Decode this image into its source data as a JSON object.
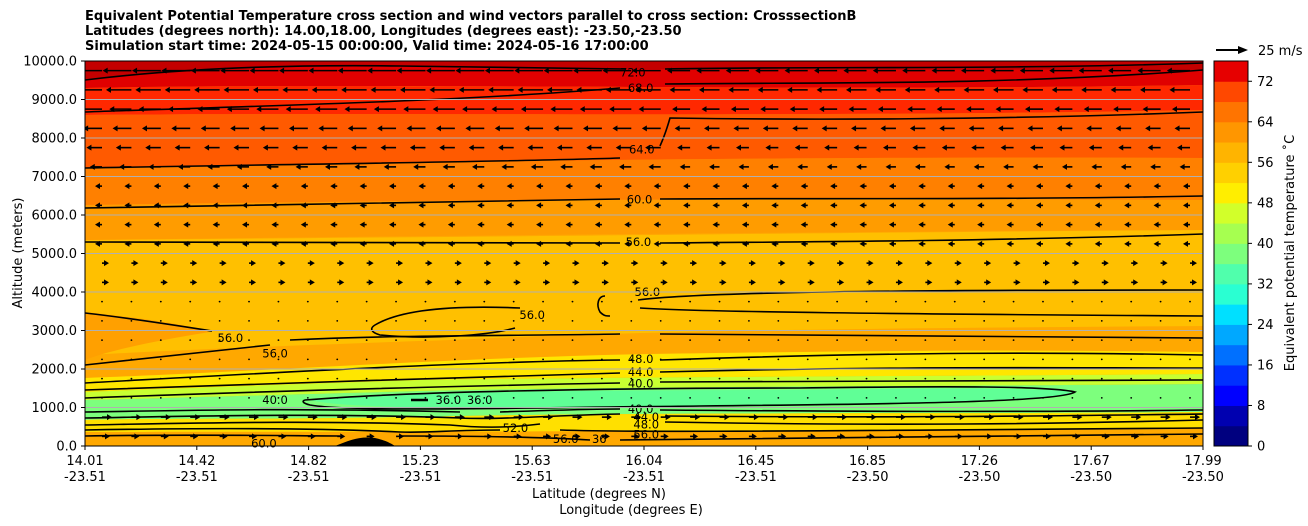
{
  "chart_data": {
    "type": "heatmap",
    "title_lines": [
      "Equivalent Potential Temperature cross section and wind vectors parallel to cross section: CrosssectionB",
      "Latitudes (degrees north): 14.00,18.00, Longitudes (degrees east): -23.50,-23.50",
      "Simulation start time: 2024-05-15 00:00:00, Valid time: 2024-05-16 17:00:00"
    ],
    "ylabel": "Altitude (meters)",
    "xlabel_lines": [
      "Latitude (degrees N)",
      "Longitude (degrees E)"
    ],
    "ylim": [
      0,
      10000
    ],
    "y_ticks": [
      0,
      1000,
      2000,
      3000,
      4000,
      5000,
      6000,
      7000,
      8000,
      9000,
      10000
    ],
    "y_tick_labels": [
      "0.0",
      "1000.0",
      "2000.0",
      "3000.0",
      "4000.0",
      "5000.0",
      "6000.0",
      "7000.0",
      "8000.0",
      "9000.0",
      "10000.0"
    ],
    "x_ticks": [
      {
        "lat": "14.01",
        "lon": "-23.51",
        "frac": 0.0
      },
      {
        "lat": "14.42",
        "lon": "-23.51",
        "frac": 0.1
      },
      {
        "lat": "14.82",
        "lon": "-23.51",
        "frac": 0.2
      },
      {
        "lat": "15.23",
        "lon": "-23.51",
        "frac": 0.3
      },
      {
        "lat": "15.63",
        "lon": "-23.51",
        "frac": 0.4
      },
      {
        "lat": "16.04",
        "lon": "-23.51",
        "frac": 0.5
      },
      {
        "lat": "16.45",
        "lon": "-23.51",
        "frac": 0.6
      },
      {
        "lat": "16.85",
        "lon": "-23.50",
        "frac": 0.7
      },
      {
        "lat": "17.26",
        "lon": "-23.50",
        "frac": 0.8
      },
      {
        "lat": "17.67",
        "lon": "-23.50",
        "frac": 0.9
      },
      {
        "lat": "17.99",
        "lon": "-23.50",
        "frac": 1.0
      }
    ],
    "colorbar": {
      "label": "Equivalent potential temperature ˚C",
      "min": 0,
      "max": 76,
      "ticks": [
        0,
        8,
        16,
        24,
        32,
        40,
        48,
        56,
        64,
        72
      ]
    },
    "quiver_key": "25 m/s",
    "grid": "horizontal",
    "contour_labels": [
      {
        "text": "72.0",
        "x": 0.49,
        "y": 9700
      },
      {
        "text": "68.0",
        "x": 0.497,
        "y": 9300
      },
      {
        "text": "64.0",
        "x": 0.498,
        "y": 7700
      },
      {
        "text": "60.0",
        "x": 0.496,
        "y": 6400
      },
      {
        "text": "56.0",
        "x": 0.495,
        "y": 5300
      },
      {
        "text": "56.0",
        "x": 0.503,
        "y": 4000
      },
      {
        "text": "56.0",
        "x": 0.4,
        "y": 3400
      },
      {
        "text": "56.0",
        "x": 0.13,
        "y": 2800
      },
      {
        "text": "56.0",
        "x": 0.17,
        "y": 2400
      },
      {
        "text": "48.0",
        "x": 0.497,
        "y": 2260
      },
      {
        "text": "44.0",
        "x": 0.497,
        "y": 1920
      },
      {
        "text": "40.0",
        "x": 0.497,
        "y": 1620
      },
      {
        "text": "40.0",
        "x": 0.17,
        "y": 1200
      },
      {
        "text": "36.0",
        "x": 0.325,
        "y": 1200
      },
      {
        "text": "36.0",
        "x": 0.353,
        "y": 1200
      },
      {
        "text": "40.0",
        "x": 0.497,
        "y": 960
      },
      {
        "text": "44.0",
        "x": 0.502,
        "y": 750
      },
      {
        "text": "48.0",
        "x": 0.502,
        "y": 560
      },
      {
        "text": "52.0",
        "x": 0.385,
        "y": 470
      },
      {
        "text": "56.0",
        "x": 0.43,
        "y": 180
      },
      {
        "text": "56.0",
        "x": 0.502,
        "y": 300
      },
      {
        "text": "36",
        "x": 0.46,
        "y": 180
      },
      {
        "text": "60.0",
        "x": 0.16,
        "y": 60
      }
    ]
  }
}
